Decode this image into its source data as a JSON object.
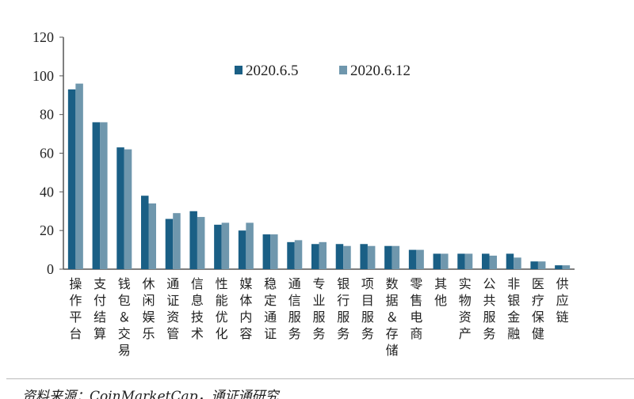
{
  "chart_data": {
    "type": "bar",
    "categories": [
      "操作平台",
      "支付结算",
      "钱包&交易",
      "休闲娱乐",
      "通证资管",
      "信息技术",
      "性能优化",
      "媒体内容",
      "稳定通证",
      "通信服务",
      "专业服务",
      "银行服务",
      "项目服务",
      "数据&存储",
      "零售电商",
      "其他",
      "实物资产",
      "公共服务",
      "非银金融",
      "医疗保健",
      "供应链"
    ],
    "series": [
      {
        "name": "2020.6.5",
        "color": "#1a5f85",
        "values": [
          93,
          76,
          63,
          38,
          26,
          30,
          23,
          20,
          18,
          14,
          13,
          13,
          13,
          12,
          10,
          8,
          8,
          8,
          8,
          4,
          2
        ]
      },
      {
        "name": "2020.6.12",
        "color": "#6f97ad",
        "values": [
          96,
          76,
          62,
          34,
          29,
          27,
          24,
          24,
          18,
          15,
          14,
          12,
          12,
          12,
          10,
          8,
          8,
          7,
          6,
          4,
          2
        ]
      }
    ],
    "ylim": [
      0,
      120
    ],
    "yticks": [
      0,
      20,
      40,
      60,
      80,
      100,
      120
    ],
    "grid": false,
    "legend": "top-center"
  },
  "footer": {
    "source": "资料来源：CoinMarketCap，通证通研究"
  }
}
